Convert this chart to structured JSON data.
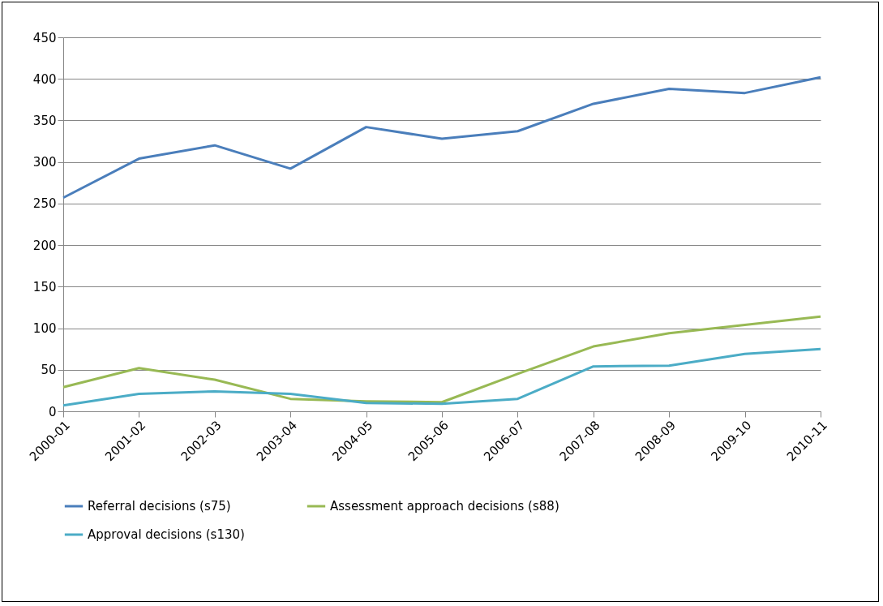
{
  "chart_data": {
    "type": "line",
    "categories": [
      "2000-01",
      "2001-02",
      "2002-03",
      "2003-04",
      "2004-05",
      "2005-06",
      "2006-07",
      "2007-08",
      "2008-09",
      "2009-10",
      "2010-11"
    ],
    "series": [
      {
        "name": "Referral decisions (s75)",
        "color": "#4a7ebb",
        "values": [
          257,
          304,
          320,
          292,
          342,
          328,
          337,
          370,
          388,
          383,
          402
        ]
      },
      {
        "name": "Assessment approach decisions (s88)",
        "color": "#98b954",
        "values": [
          29,
          52,
          38,
          15,
          12,
          11,
          45,
          78,
          94,
          104,
          114
        ]
      },
      {
        "name": "Approval decisions (s130)",
        "color": "#4bacc6",
        "values": [
          7,
          21,
          24,
          21,
          10,
          9,
          15,
          54,
          55,
          69,
          75
        ]
      }
    ],
    "ylim": [
      0,
      450
    ],
    "yticks": [
      0,
      50,
      100,
      150,
      200,
      250,
      300,
      350,
      400,
      450
    ],
    "grid": "y",
    "legend": "bottom",
    "marker": "none",
    "line_style": "solid"
  }
}
